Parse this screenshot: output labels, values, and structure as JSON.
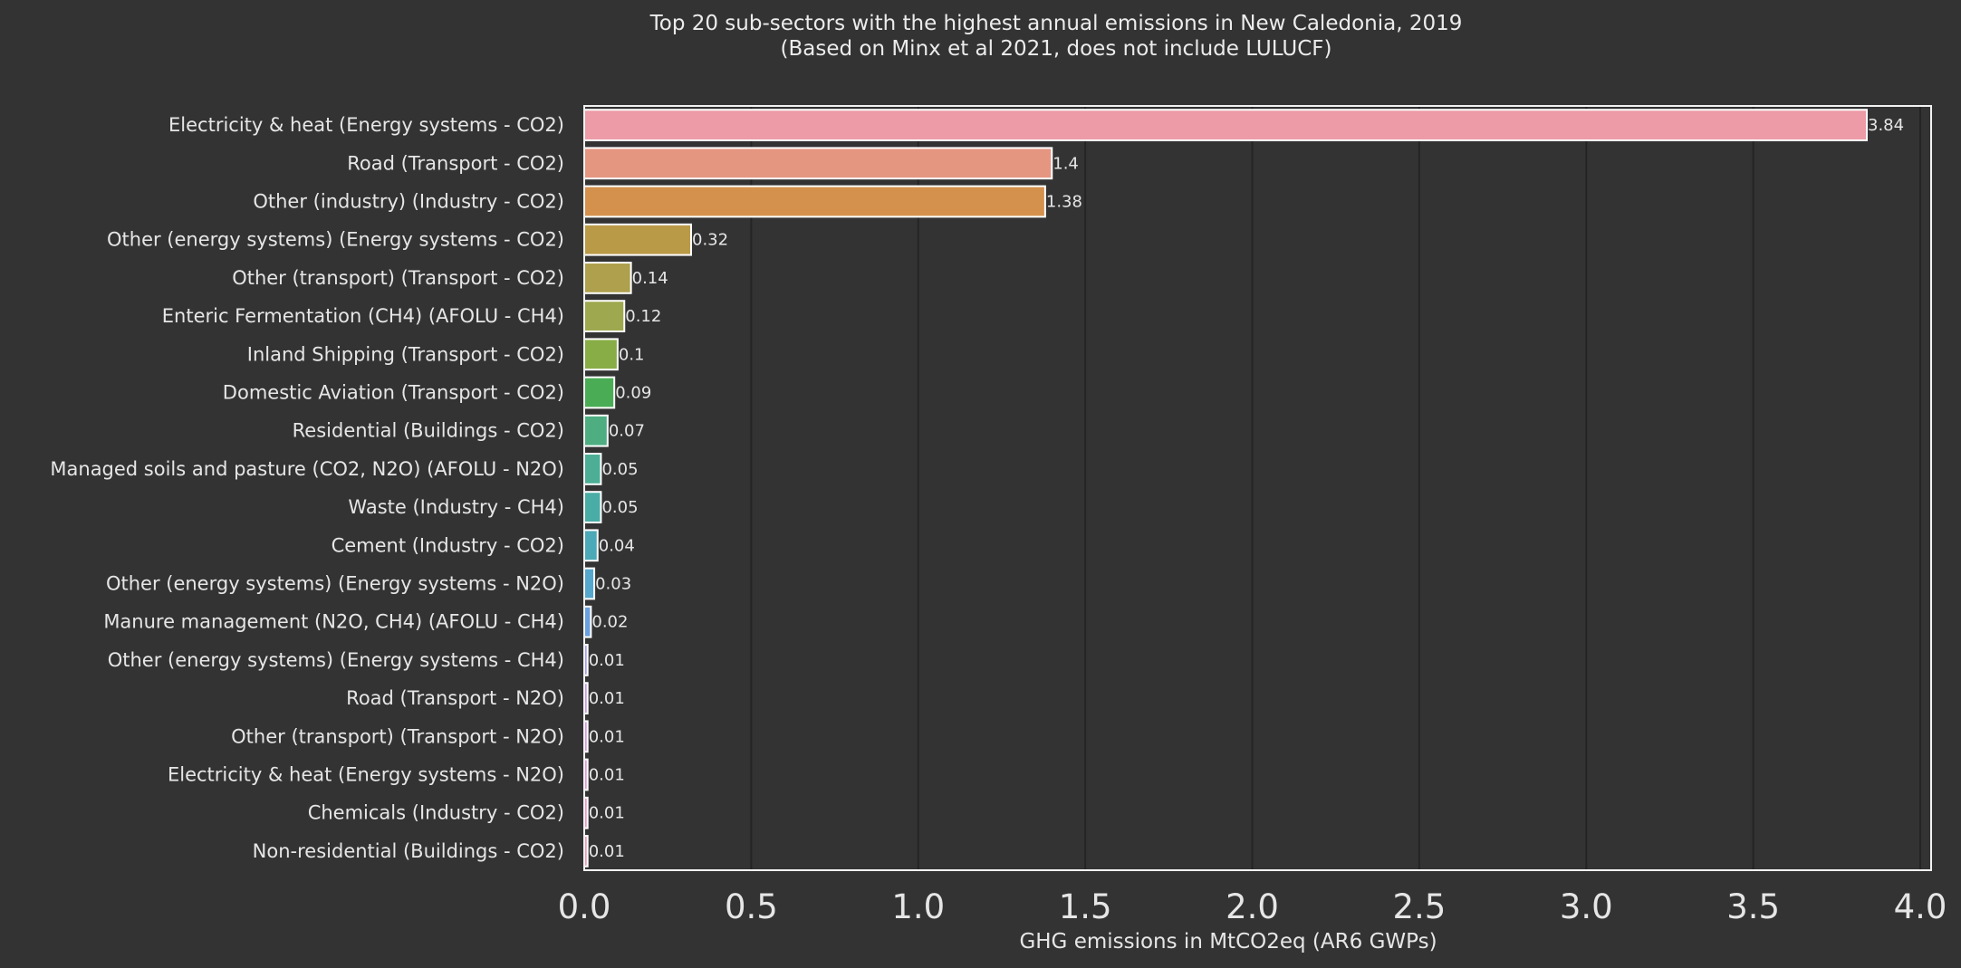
{
  "chart_data": {
    "type": "bar",
    "orientation": "horizontal",
    "title": "Top 20 sub-sectors with the highest annual emissions in New Caledonia, 2019",
    "subtitle": "(Based on Minx et al 2021, does not include LULUCF)",
    "xlabel": "GHG emissions in MtCO2eq (AR6 GWPs)",
    "ylabel": "",
    "xlim": [
      0,
      4.0
    ],
    "x_ticks": [
      "0.0",
      "0.5",
      "1.0",
      "1.5",
      "2.0",
      "2.5",
      "3.0",
      "3.5",
      "4.0"
    ],
    "grid": "vertical",
    "categories": [
      "Electricity & heat (Energy systems - CO2)",
      "Road (Transport - CO2)",
      "Other (industry) (Industry - CO2)",
      "Other (energy systems) (Energy systems - CO2)",
      "Other (transport) (Transport - CO2)",
      "Enteric Fermentation (CH4) (AFOLU - CH4)",
      "Inland Shipping (Transport - CO2)",
      "Domestic Aviation (Transport - CO2)",
      "Residential (Buildings - CO2)",
      "Managed soils and pasture (CO2, N2O) (AFOLU - N2O)",
      "Waste (Industry - CH4)",
      "Cement (Industry - CO2)",
      "Other (energy systems) (Energy systems - N2O)",
      "Manure management (N2O, CH4) (AFOLU - CH4)",
      "Other (energy systems) (Energy systems - CH4)",
      "Road (Transport - N2O)",
      "Other (transport) (Transport - N2O)",
      "Electricity & heat (Energy systems - N2O)",
      "Chemicals (Industry - CO2)",
      "Non-residential (Buildings - CO2)"
    ],
    "values": [
      3.84,
      1.4,
      1.38,
      0.32,
      0.14,
      0.12,
      0.1,
      0.09,
      0.07,
      0.05,
      0.05,
      0.04,
      0.03,
      0.02,
      0.01,
      0.01,
      0.01,
      0.01,
      0.01,
      0.01
    ],
    "value_labels": [
      "3.84",
      "1.4",
      "1.38",
      "0.32",
      "0.14",
      "0.12",
      "0.1",
      "0.09",
      "0.07",
      "0.05",
      "0.05",
      "0.04",
      "0.03",
      "0.02",
      "0.01",
      "0.01",
      "0.01",
      "0.01",
      "0.01",
      "0.01"
    ],
    "colors": [
      "#ec9ba7",
      "#e59681",
      "#d4914d",
      "#b99a47",
      "#aea04c",
      "#9ea84e",
      "#88ad47",
      "#4aad55",
      "#4eae82",
      "#4cae95",
      "#4aada5",
      "#4ca9b7",
      "#55a7cd",
      "#6a9fe0",
      "#a49ee8",
      "#c39ae6",
      "#d797e0",
      "#e396d4",
      "#eb95c4",
      "#ec98b6"
    ]
  },
  "style": {
    "background": "#333333",
    "plot_frame": "#f2f2f2",
    "gridline": "#242424",
    "bar_edge": "#ffffff",
    "text": "#e6e6e6"
  }
}
